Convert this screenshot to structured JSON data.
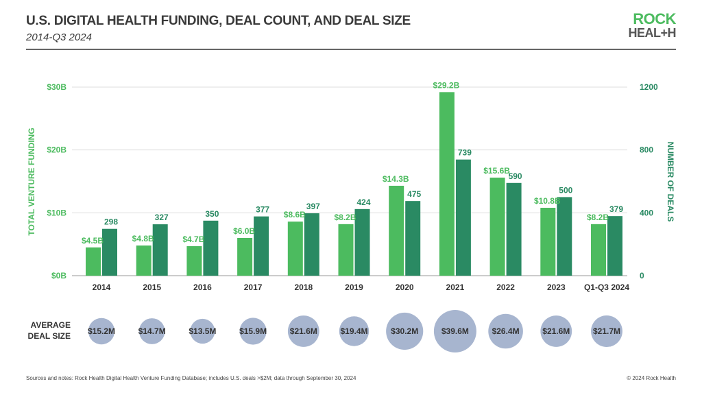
{
  "header": {
    "title": "U.S. DIGITAL HEALTH FUNDING, DEAL COUNT, AND DEAL SIZE",
    "subtitle": "2014-Q3 2024",
    "logo_line1": "ROCK",
    "logo_line2": "HEAL+H"
  },
  "footer": {
    "notes": "Sources and notes: Rock Health Digital Health Venture Funding Database; includes U.S. deals >$2M; data through September 30, 2024",
    "copyright": "© 2024 Rock Health"
  },
  "chart_data": {
    "type": "bar",
    "categories": [
      "2014",
      "2015",
      "2016",
      "2017",
      "2018",
      "2019",
      "2020",
      "2021",
      "2022",
      "2023",
      "Q1-Q3 2024"
    ],
    "series": [
      {
        "axis": "left",
        "color": "#4cbb5f",
        "values": [
          4.5,
          4.8,
          4.7,
          6.0,
          8.6,
          8.2,
          14.3,
          29.2,
          15.6,
          10.8,
          8.2
        ],
        "labels": [
          "$4.5B",
          "$4.8B",
          "$4.7B",
          "$6.0B",
          "$8.6B",
          "$8.2B",
          "$14.3B",
          "$29.2B",
          "$15.6B",
          "$10.8B",
          "$8.2B"
        ]
      },
      {
        "axis": "right",
        "color": "#2a8a63",
        "values": [
          298,
          327,
          350,
          377,
          397,
          424,
          475,
          739,
          590,
          500,
          379
        ],
        "labels": [
          "298",
          "327",
          "350",
          "377",
          "397",
          "424",
          "475",
          "739",
          "590",
          "500",
          "379"
        ]
      }
    ],
    "left_axis": {
      "label": "TOTAL VENTURE FUNDING",
      "ylim": [
        0,
        30
      ],
      "ticks": [
        "$0B",
        "$10B",
        "$20B",
        "$30B"
      ],
      "color": "#4cbb5f"
    },
    "right_axis": {
      "label": "NUMBER OF DEALS",
      "ylim": [
        0,
        1200
      ],
      "ticks": [
        "0",
        "400",
        "800",
        "1200"
      ],
      "color": "#2a8a63"
    },
    "grid": true,
    "bubbles": {
      "label": "AVERAGE DEAL SIZE",
      "label_lines": [
        "AVERAGE",
        "DEAL SIZE"
      ],
      "color": "#a7b5cf",
      "values": [
        15.2,
        14.7,
        13.5,
        15.9,
        21.6,
        19.4,
        30.2,
        39.6,
        26.4,
        21.6,
        21.7
      ],
      "labels": [
        "$15.2M",
        "$14.7M",
        "$13.5M",
        "$15.9M",
        "$21.6M",
        "$19.4M",
        "$30.2M",
        "$39.6M",
        "$26.4M",
        "$21.6M",
        "$21.7M"
      ]
    }
  }
}
